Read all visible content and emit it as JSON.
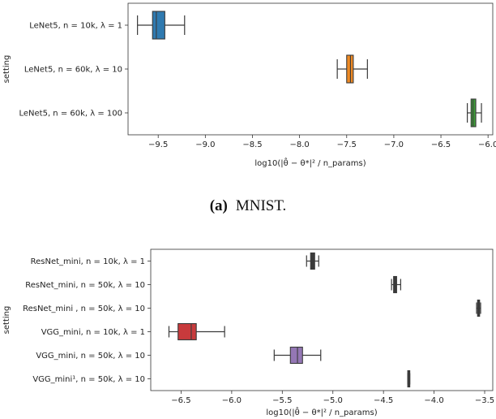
{
  "chart_data": [
    {
      "type": "boxplot",
      "orientation": "horizontal",
      "ylabel": "setting",
      "xlabel": "log10(|θ̂ − θ*|² / n_params)",
      "xlim": [
        -9.82,
        -5.95
      ],
      "xticks": [
        -9.5,
        -9.0,
        -8.5,
        -8.0,
        -7.5,
        -7.0,
        -6.5,
        -6.0
      ],
      "xtick_labels": [
        "−9.5",
        "−9.0",
        "−8.5",
        "−8.0",
        "−7.5",
        "−7.0",
        "−6.5",
        "−6.0"
      ],
      "caption_label": "(a)",
      "caption_text": "MNIST.",
      "series": [
        {
          "name": "LeNet5, n = 10k, λ = 1",
          "color": "#2f7ab0",
          "whislo": -9.72,
          "q1": -9.56,
          "median": -9.52,
          "q3": -9.43,
          "whishi": -9.22
        },
        {
          "name": "LeNet5, n = 60k, λ = 10",
          "color": "#ef8a24",
          "whislo": -7.6,
          "q1": -7.5,
          "median": -7.46,
          "q3": -7.43,
          "whishi": -7.28
        },
        {
          "name": "LeNet5, n = 60k, λ = 100",
          "color": "#3f9b3a",
          "whislo": -6.22,
          "q1": -6.18,
          "median": -6.16,
          "q3": -6.13,
          "whishi": -6.07
        }
      ]
    },
    {
      "type": "boxplot",
      "orientation": "horizontal",
      "ylabel": "setting",
      "xlabel": "log10(|θ̂ − θ*|² / n_params)",
      "xlim": [
        -6.8,
        -3.42
      ],
      "xticks": [
        -6.5,
        -6.0,
        -5.5,
        -5.0,
        -4.5,
        -4.0,
        -3.5
      ],
      "xtick_labels": [
        "−6.5",
        "−6.0",
        "−5.5",
        "−5.0",
        "−4.5",
        "−4.0",
        "−3.5"
      ],
      "series": [
        {
          "name": "ResNet_mini, n = 10k, λ = 1",
          "color": "#3b3b3b",
          "whislo": -5.26,
          "q1": -5.22,
          "median": -5.2,
          "q3": -5.18,
          "whishi": -5.14
        },
        {
          "name": "ResNet_mini, n = 50k, λ = 10",
          "color": "#3b3b3b",
          "whislo": -4.42,
          "q1": -4.4,
          "median": -4.38,
          "q3": -4.37,
          "whishi": -4.33
        },
        {
          "name": "ResNet_mini , n = 50k, λ = 10",
          "color": "#3b3b3b",
          "whislo": -3.58,
          "q1": -3.57,
          "median": -3.56,
          "q3": -3.55,
          "whishi": -3.54
        },
        {
          "name": "VGG_mini, n = 10k, λ = 1",
          "color": "#c83a3c",
          "whislo": -6.62,
          "q1": -6.53,
          "median": -6.4,
          "q3": -6.35,
          "whishi": -6.07
        },
        {
          "name": "VGG_mini, n = 50k, λ = 10",
          "color": "#9477b5",
          "whislo": -5.58,
          "q1": -5.42,
          "median": -5.35,
          "q3": -5.3,
          "whishi": -5.12
        },
        {
          "name": "VGG_mini¹, n = 50k, λ = 10",
          "color": "#3b3b3b",
          "whislo": -4.26,
          "q1": -4.255,
          "median": -4.25,
          "q3": -4.245,
          "whishi": -4.24
        }
      ]
    }
  ]
}
